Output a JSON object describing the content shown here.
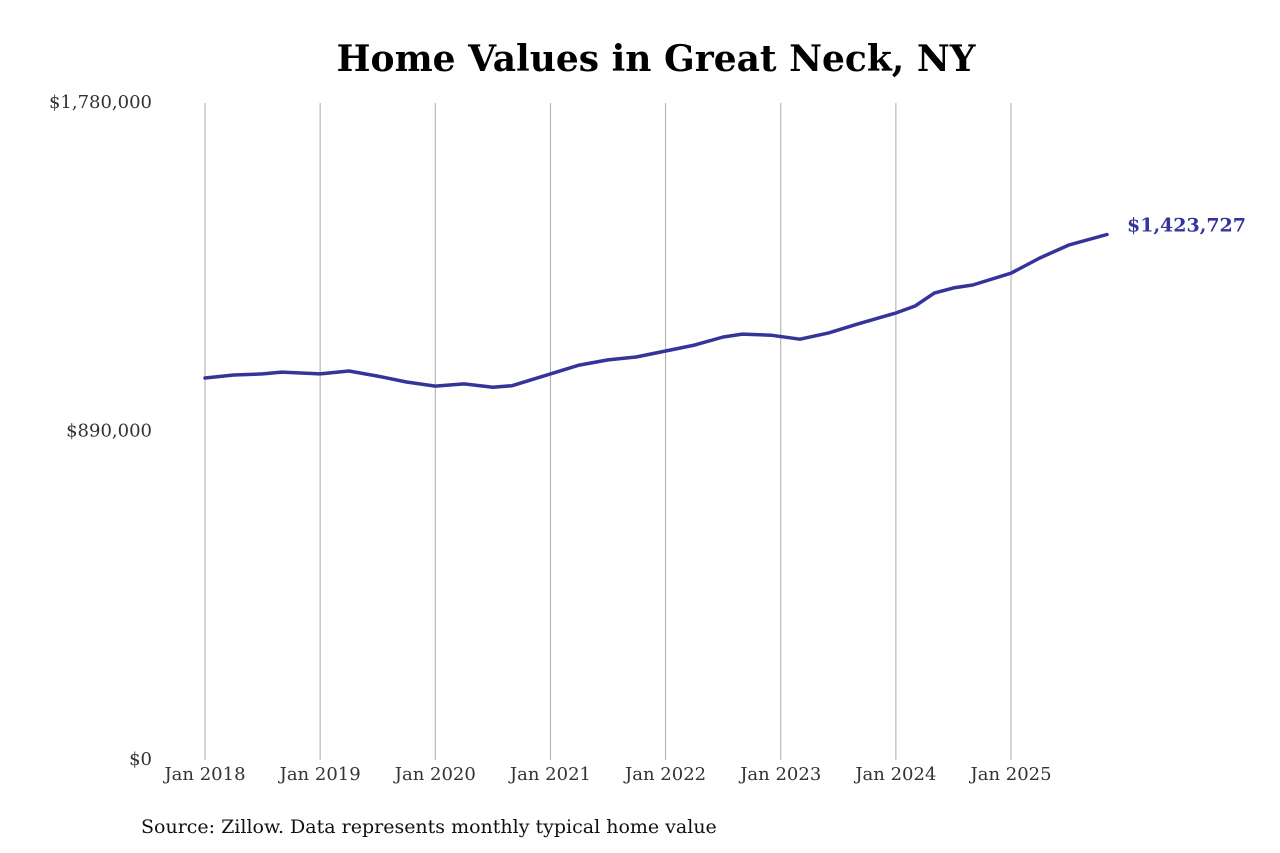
{
  "chart_data": {
    "type": "line",
    "title": "Home Values in Great Neck, NY",
    "source": "Source: Zillow. Data represents monthly typical home value",
    "x": [
      "2018-01",
      "2018-04",
      "2018-07",
      "2018-09",
      "2019-01",
      "2019-04",
      "2019-07",
      "2019-10",
      "2020-01",
      "2020-04",
      "2020-07",
      "2020-09",
      "2021-01",
      "2021-04",
      "2021-07",
      "2021-10",
      "2022-01",
      "2022-04",
      "2022-07",
      "2022-09",
      "2022-12",
      "2023-03",
      "2023-06",
      "2023-09",
      "2024-01",
      "2024-03",
      "2024-05",
      "2024-07",
      "2024-09",
      "2025-01",
      "2025-04",
      "2025-07",
      "2025-11"
    ],
    "series": [
      {
        "color": "#35349a",
        "values": [
          1035000,
          1043000,
          1046000,
          1051000,
          1046000,
          1054000,
          1040000,
          1024000,
          1013000,
          1019000,
          1010000,
          1014000,
          1046000,
          1070000,
          1084000,
          1092000,
          1108000,
          1124000,
          1146000,
          1154000,
          1151000,
          1140000,
          1157000,
          1181000,
          1211000,
          1230000,
          1265000,
          1279000,
          1287000,
          1319000,
          1360000,
          1395000,
          1423727
        ],
        "value_labels": [
          null,
          null,
          null,
          null,
          null,
          null,
          null,
          null,
          null,
          null,
          null,
          null,
          null,
          null,
          null,
          null,
          null,
          null,
          null,
          null,
          null,
          null,
          null,
          null,
          null,
          null,
          null,
          null,
          null,
          null,
          null,
          null,
          "$1,423,727"
        ]
      }
    ],
    "xlim": [
      "2018-01",
      "2025-11"
    ],
    "xticks": [
      {
        "value": "2018-01",
        "label": "Jan 2018"
      },
      {
        "value": "2019-01",
        "label": "Jan 2019"
      },
      {
        "value": "2020-01",
        "label": "Jan 2020"
      },
      {
        "value": "2021-01",
        "label": "Jan 2021"
      },
      {
        "value": "2022-01",
        "label": "Jan 2022"
      },
      {
        "value": "2023-01",
        "label": "Jan 2023"
      },
      {
        "value": "2024-01",
        "label": "Jan 2024"
      },
      {
        "value": "2025-01",
        "label": "Jan 2025"
      }
    ],
    "ylim": [
      0,
      1780000
    ],
    "yticks": [
      {
        "value": 0,
        "label": "$0"
      },
      {
        "value": 890000,
        "label": "$890,000"
      },
      {
        "value": 1780000,
        "label": "$1,780,000"
      }
    ],
    "grid": true
  }
}
